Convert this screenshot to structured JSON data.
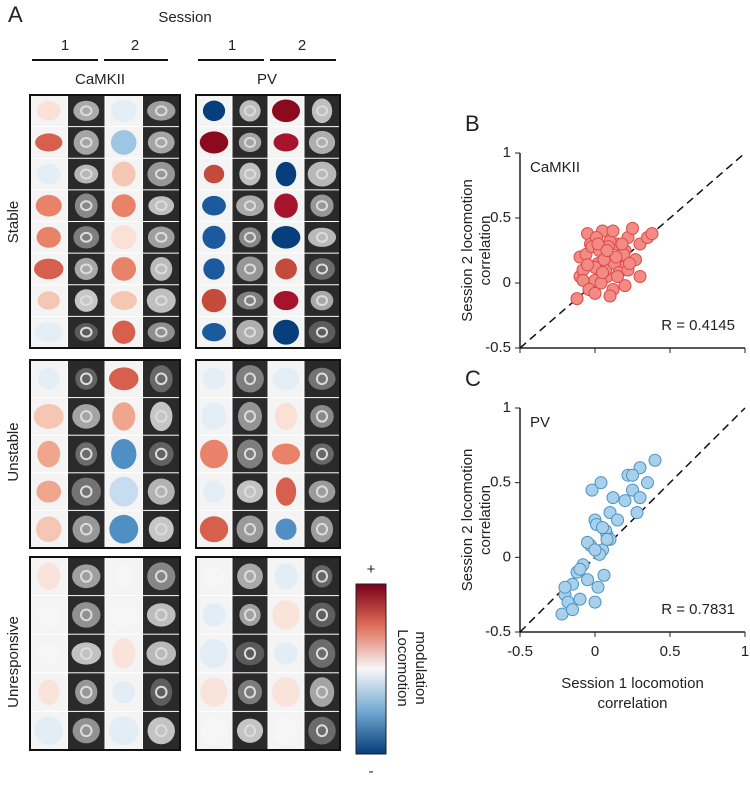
{
  "panel_a": {
    "label": "A",
    "session_label": "Session",
    "session_numbers": [
      "1",
      "2",
      "1",
      "2"
    ],
    "groups": [
      "CaMKII",
      "PV"
    ],
    "rows": [
      "Stable",
      "Unstable",
      "Unresponsive"
    ],
    "colorbar": {
      "title": [
        "Locomotion",
        "modulation"
      ],
      "max_label": "+",
      "min_label": "-"
    }
  },
  "chart_data": [
    {
      "type": "scatter",
      "panel": "B",
      "annotation": "CaMKII",
      "stat": "R = 0.4145",
      "ylabel": [
        "Session 2 locomotion",
        "correlation"
      ],
      "xlim": [
        -0.5,
        1
      ],
      "ylim": [
        -0.5,
        1
      ],
      "xticks": [
        -0.5,
        0,
        0.5,
        1
      ],
      "yticks": [
        -0.5,
        0,
        0.5,
        1
      ],
      "show_xtick_labels": false,
      "identity_line": true,
      "color": "#f28b86",
      "edgecolor": "#dd4a44",
      "x": [
        -0.12,
        -0.1,
        -0.08,
        -0.05,
        -0.03,
        0,
        0.02,
        0.05,
        0.08,
        0.1,
        0.12,
        0.15,
        0.18,
        0.2,
        0.22,
        0.25,
        0.3,
        0.35,
        -0.1,
        -0.06,
        -0.02,
        0.01,
        0.04,
        0.07,
        0.1,
        0.13,
        0.16,
        0.2,
        -0.08,
        -0.04,
        0,
        0.03,
        0.06,
        0.09,
        0.12,
        0.15,
        0.19,
        0.22,
        0.27,
        -0.05,
        0,
        0.05,
        0.1,
        0.14,
        0.18,
        0.23,
        0.3,
        0.38,
        0.02,
        0.08
      ],
      "y": [
        -0.12,
        0.05,
        0.1,
        0.38,
        0.3,
        0.02,
        0.15,
        0.4,
        0.05,
        0.2,
        -0.05,
        0.3,
        0.12,
        0.25,
        0.35,
        0.42,
        0.3,
        0.35,
        0.2,
        0.22,
        0.28,
        0.35,
        0,
        0.1,
        0.32,
        0.15,
        0.08,
        -0.02,
        0.02,
        -0.05,
        0.12,
        0.25,
        0.18,
        0.28,
        0.4,
        0.05,
        0.22,
        0.1,
        0.18,
        0.14,
        -0.08,
        0.08,
        -0.1,
        0.2,
        0.3,
        0.15,
        0.05,
        0.38,
        0.3,
        0.25
      ]
    },
    {
      "type": "scatter",
      "panel": "C",
      "annotation": "PV",
      "stat": "R = 0.7831",
      "ylabel": [
        "Session 2 locomotion",
        "correlation"
      ],
      "xlabel": [
        "Session 1 locomotion",
        "correlation"
      ],
      "xlim": [
        -0.5,
        1
      ],
      "ylim": [
        -0.5,
        1
      ],
      "xticks": [
        -0.5,
        0,
        0.5,
        1
      ],
      "yticks": [
        -0.5,
        0,
        0.5,
        1
      ],
      "show_xtick_labels": true,
      "identity_line": true,
      "color": "#a9d0ea",
      "edgecolor": "#4b92c4",
      "x": [
        -0.22,
        -0.2,
        -0.18,
        -0.15,
        -0.12,
        -0.1,
        -0.08,
        -0.05,
        -0.03,
        0,
        0.02,
        0.05,
        0.08,
        -0.1,
        -0.05,
        0,
        0.03,
        0.06,
        0.1,
        -0.02,
        0.01,
        0.04,
        0.07,
        0.1,
        0.15,
        0.2,
        0.22,
        0.25,
        0.28,
        0.3,
        0.35,
        0.4,
        0.3,
        0.25,
        0.05,
        0,
        -0.15,
        -0.2,
        0.08,
        0.12
      ],
      "y": [
        -0.38,
        -0.25,
        -0.3,
        -0.18,
        -0.1,
        -0.28,
        -0.05,
        -0.15,
        0.08,
        -0.3,
        -0.2,
        0.05,
        0.15,
        -0.08,
        0.1,
        0.25,
        0.02,
        -0.12,
        0.3,
        0.45,
        0.22,
        0.5,
        0.18,
        0.12,
        0.25,
        0.38,
        0.55,
        0.45,
        0.3,
        0.6,
        0.5,
        0.65,
        0.4,
        0.55,
        0.2,
        0.05,
        -0.35,
        -0.2,
        0.12,
        0.4
      ]
    }
  ]
}
